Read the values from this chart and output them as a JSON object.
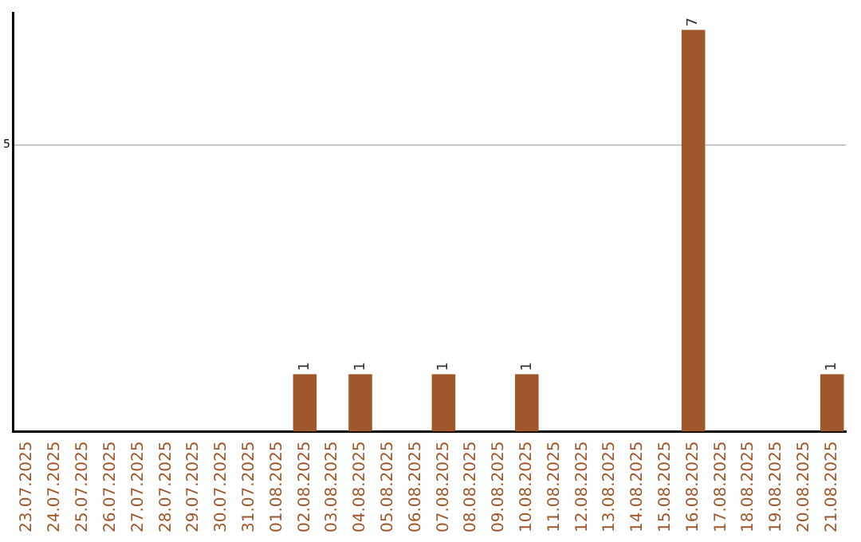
{
  "chart_data": {
    "type": "bar",
    "categories": [
      "23.07.2025",
      "24.07.2025",
      "25.07.2025",
      "26.07.2025",
      "27.07.2025",
      "28.07.2025",
      "29.07.2025",
      "30.07.2025",
      "31.07.2025",
      "01.08.2025",
      "02.08.2025",
      "03.08.2025",
      "04.08.2025",
      "05.08.2025",
      "06.08.2025",
      "07.08.2025",
      "08.08.2025",
      "09.08.2025",
      "10.08.2025",
      "11.08.2025",
      "12.08.2025",
      "13.08.2025",
      "14.08.2025",
      "15.08.2025",
      "16.08.2025",
      "17.08.2025",
      "18.08.2025",
      "19.08.2025",
      "20.08.2025",
      "21.08.2025"
    ],
    "values": [
      0,
      0,
      0,
      0,
      0,
      0,
      0,
      0,
      0,
      0,
      1,
      0,
      1,
      0,
      0,
      1,
      0,
      0,
      1,
      0,
      0,
      0,
      0,
      0,
      7,
      0,
      0,
      0,
      0,
      1
    ],
    "value_labels": [
      null,
      null,
      null,
      null,
      null,
      null,
      null,
      null,
      null,
      null,
      "1",
      null,
      "1",
      null,
      null,
      "1",
      null,
      null,
      "1",
      null,
      null,
      null,
      null,
      null,
      "7",
      null,
      null,
      null,
      null,
      "1"
    ],
    "color": "#a0572b",
    "ylim": [
      0,
      7.3
    ],
    "yticks": [
      5
    ],
    "grid": "y",
    "legend": false
  }
}
